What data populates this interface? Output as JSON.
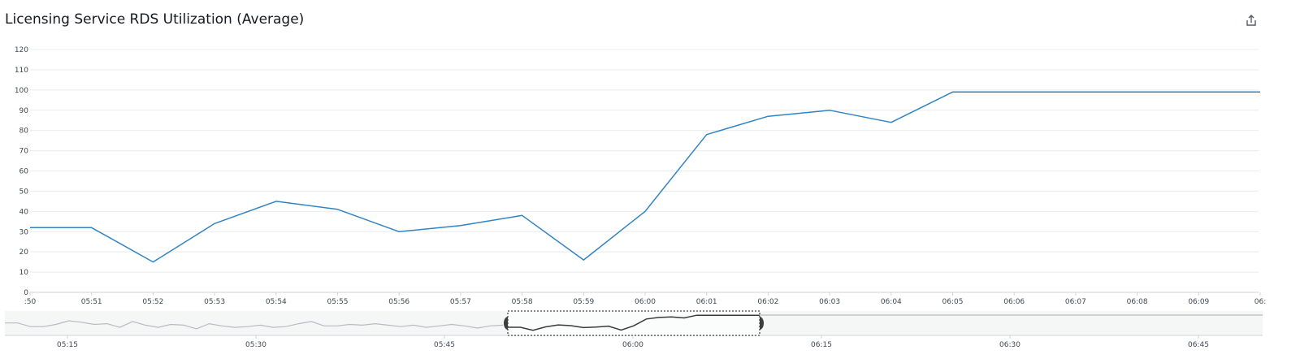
{
  "title": "Licensing Service RDS Utilization (Average)",
  "icons": {
    "share": "share-icon"
  },
  "colors": {
    "series": "#3184c2",
    "grid": "#e9ebed",
    "axis": "#cfd3d8",
    "navigator_line": "#b7bcc2",
    "navigator_bg": "#f5f7f7",
    "selection_line": "#3a3a3a",
    "handle": "#3d3d3d"
  },
  "chart_data": {
    "type": "line",
    "title": "Licensing Service RDS Utilization (Average)",
    "xlabel": "",
    "ylabel": "",
    "ylim": [
      0,
      120
    ],
    "y_ticks": [
      "0",
      "10",
      "20",
      "30",
      "40",
      "50",
      "60",
      "70",
      "80",
      "90",
      "100",
      "110",
      "120"
    ],
    "x_ticks": [
      ":50",
      "05:51",
      "05:52",
      "05:53",
      "05:54",
      "05:55",
      "05:56",
      "05:57",
      "05:58",
      "05:59",
      "06:00",
      "06:01",
      "06:02",
      "06:03",
      "06:04",
      "06:05",
      "06:06",
      "06:07",
      "06:08",
      "06:09",
      "06:"
    ],
    "grid": true,
    "series": [
      {
        "values": [
          [
            "05:50",
            32
          ],
          [
            "05:51",
            32
          ],
          [
            "05:52",
            15
          ],
          [
            "05:53",
            34
          ],
          [
            "05:54",
            45
          ],
          [
            "05:55",
            41
          ],
          [
            "05:56",
            30
          ],
          [
            "05:57",
            33
          ],
          [
            "05:58",
            38
          ],
          [
            "05:59",
            16
          ],
          [
            "06:00",
            40
          ],
          [
            "06:01",
            78
          ],
          [
            "06:02",
            87
          ],
          [
            "06:03",
            90
          ],
          [
            "06:04",
            84
          ],
          [
            "06:05",
            99
          ],
          [
            "06:06",
            99
          ],
          [
            "06:07",
            99
          ],
          [
            "06:08",
            99
          ],
          [
            "06:09",
            99
          ],
          [
            "06:10",
            99
          ]
        ]
      }
    ],
    "navigator": {
      "x_ticks": [
        "05:15",
        "05:30",
        "05:45",
        "06:00",
        "06:15",
        "06:30",
        "06:45"
      ],
      "selected_range": [
        "05:50",
        "06:10"
      ]
    }
  }
}
